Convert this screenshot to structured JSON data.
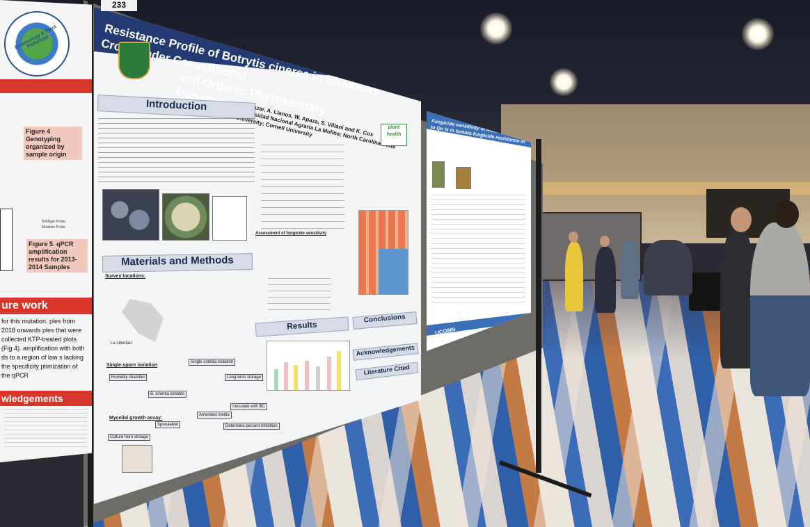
{
  "poster_number": "233",
  "main_poster": {
    "title_line1": "Resistance Profile of Botrytis cinerea in Blueberry Crops under Conventional",
    "title_line2": "and Organic Phytosanitary Management in Peru",
    "authors": "J. Salazar, A. Llanos, W. Apaza, S. Villani and K. Cox",
    "affiliations": "Universidad Nacional Agraria La Molina; North Carolina State University; Cornell University",
    "logo_text": "plant health",
    "sections": {
      "introduction": "Introduction",
      "materials": "Materials and Methods",
      "results": "Results",
      "conclusions": "Conclusions",
      "acknowledgements": "Acknowledgements",
      "literature": "Literature Cited"
    },
    "subsections": {
      "survey": "Survey locations.",
      "single_spore": "Single-spore isolation",
      "mycelial": "Mycelial growth assay:",
      "assessment": "Assessment of fungicide sensitivity"
    },
    "workflow_tags": [
      "Humidity chamber",
      "Single conidia isolation",
      "Long-term storage",
      "B. cinerea isolates",
      "Culture from storage",
      "Sporulation",
      "Amended media",
      "Inoculate with BC",
      "Determine percent inhibition"
    ],
    "map_label": "La Libertad",
    "colors": {
      "header": "#233a72",
      "section": "#d6dbe6"
    }
  },
  "left_poster": {
    "logo_text": "Entomology & Plant Pathology",
    "figure4": "Figure 4 Genotyping organized by sample origin",
    "legend_wildtype": "Wildtype Probe",
    "legend_mutation": "Mutation Probe",
    "figure5": "Figure 5. qPCR amplification results for 2013-2014 Samples",
    "future_work": "ure work",
    "future_text": "for this mutation. ples from 2018 onwards ples that were collected KTP-treated plots (Fig 4). amplification with both ds to a region of low s lacking the specificity ptimization of the qPCR",
    "acknowledgements": "wledgements",
    "colors": {
      "accent": "#d8352a"
    }
  },
  "right_poster": {
    "title": "Fungicide sensitivity of Alternaria alternata to Qo Is in tomato fungicide resistance in tomato producing areas in the Eastern US",
    "footer_logo": "UCONN"
  }
}
